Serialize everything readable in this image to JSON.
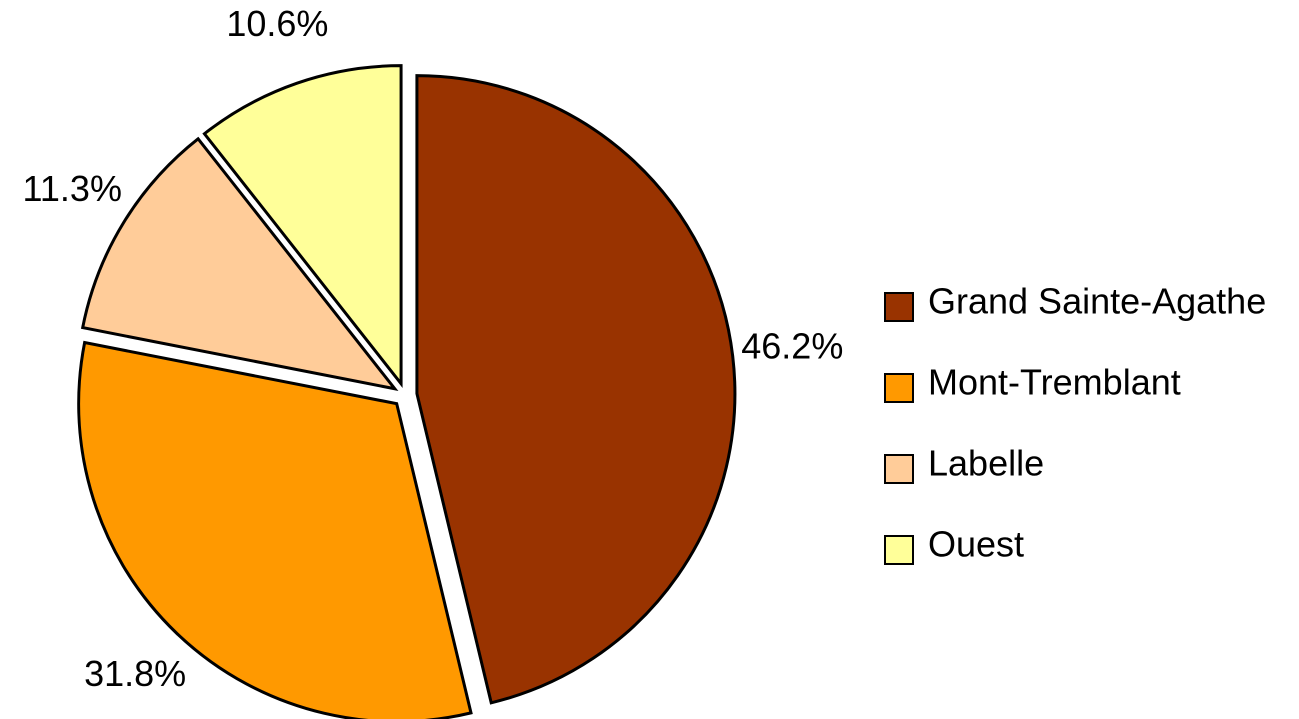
{
  "chart_data": {
    "type": "pie",
    "categories": [
      "Grand Sainte-Agathe",
      "Mont-Tremblant",
      "Labelle",
      "Ouest"
    ],
    "values": [
      46.2,
      31.8,
      11.3,
      10.6
    ],
    "value_labels": [
      "46.2%",
      "31.8%",
      "11.3%",
      "10.6%"
    ],
    "colors": [
      "#993300",
      "#FF9900",
      "#FFCC99",
      "#FFFF99"
    ],
    "legend": "right"
  }
}
